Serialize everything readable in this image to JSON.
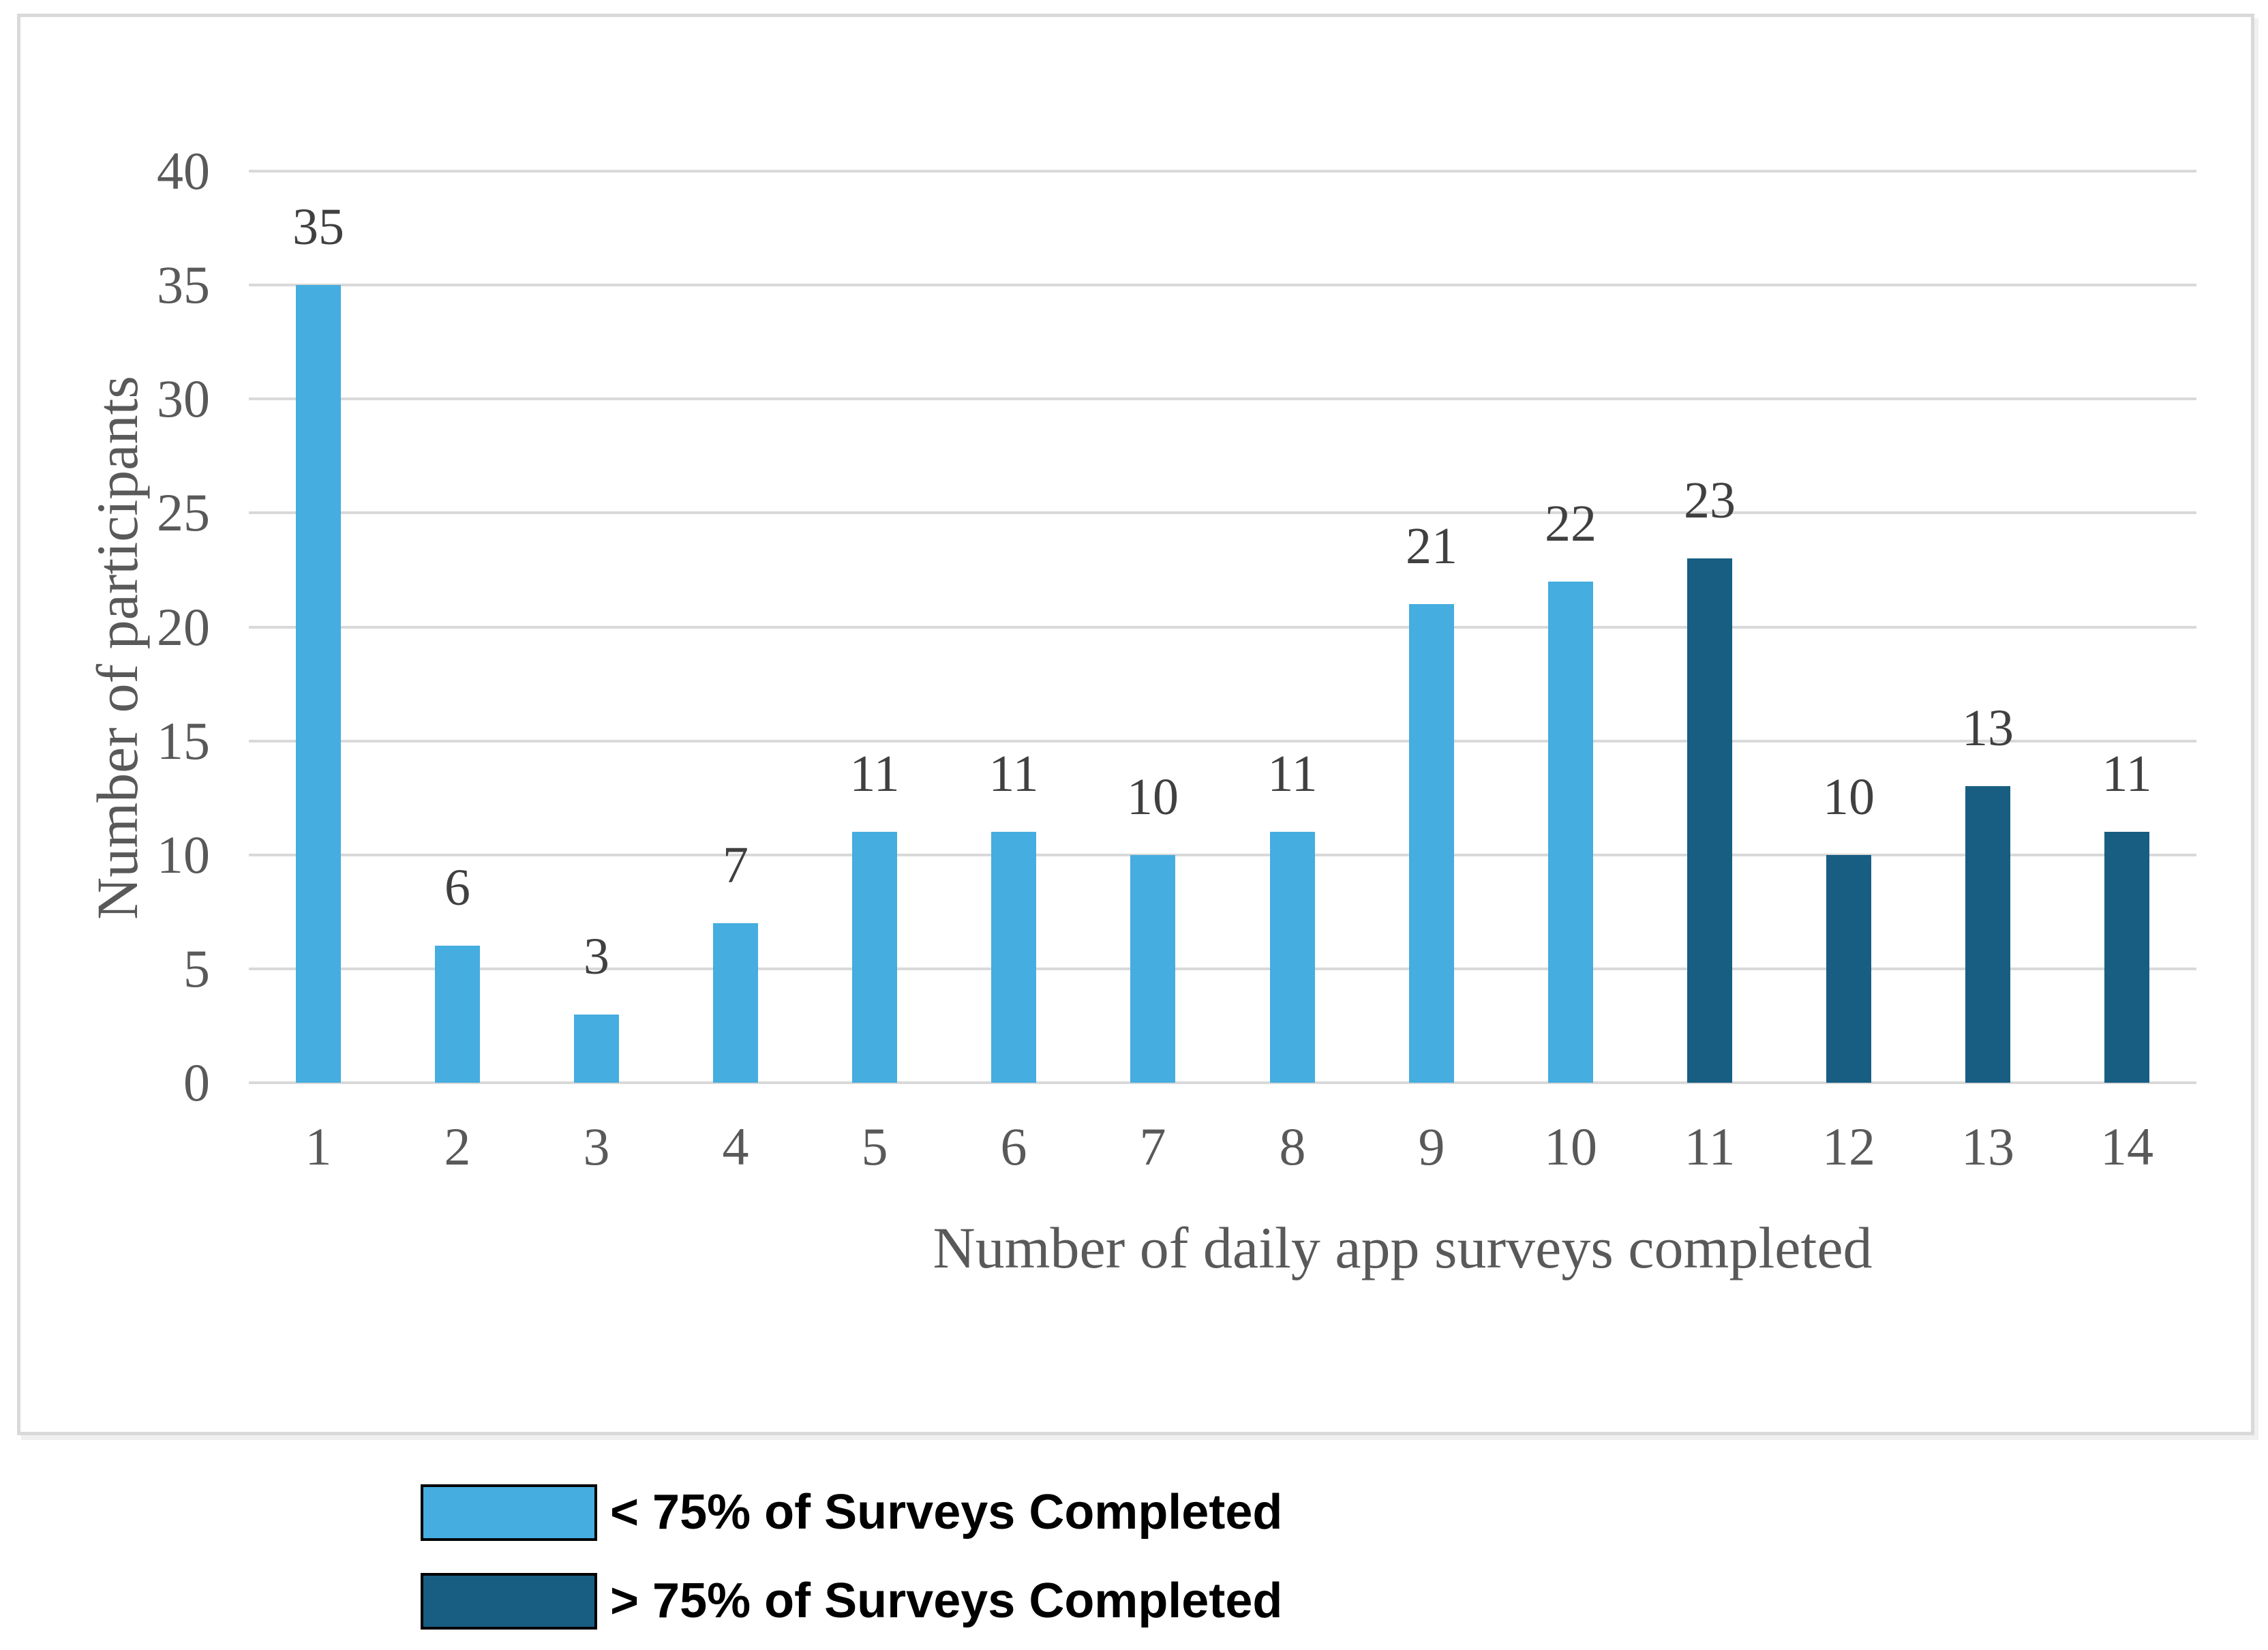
{
  "chart_data": {
    "type": "bar",
    "xlabel": "Number of daily app surveys completed",
    "ylabel": "Number of participants",
    "categories": [
      "1",
      "2",
      "3",
      "4",
      "5",
      "6",
      "7",
      "8",
      "9",
      "10",
      "11",
      "12",
      "13",
      "14"
    ],
    "values": [
      35,
      6,
      3,
      7,
      11,
      11,
      10,
      11,
      21,
      22,
      23,
      10,
      13,
      11
    ],
    "series_index_by_bar": [
      0,
      0,
      0,
      0,
      0,
      0,
      0,
      0,
      0,
      0,
      1,
      1,
      1,
      1
    ],
    "series": [
      {
        "name": "< 75% of Surveys Completed",
        "color": "#45ADDF"
      },
      {
        "name": "> 75% of Surveys Completed",
        "color": "#175E82"
      }
    ],
    "ylim": [
      0,
      40
    ],
    "yticks": [
      0,
      5,
      10,
      15,
      20,
      25,
      30,
      35,
      40
    ],
    "grid": "horizontal",
    "legend_position": "below-chart",
    "data_labels": true
  },
  "colors": {
    "gridline": "#D9D9D9",
    "panel_border": "#D9D9D9",
    "axis_text": "#595959",
    "data_label_text": "#404040",
    "legend_text": "#000000"
  }
}
